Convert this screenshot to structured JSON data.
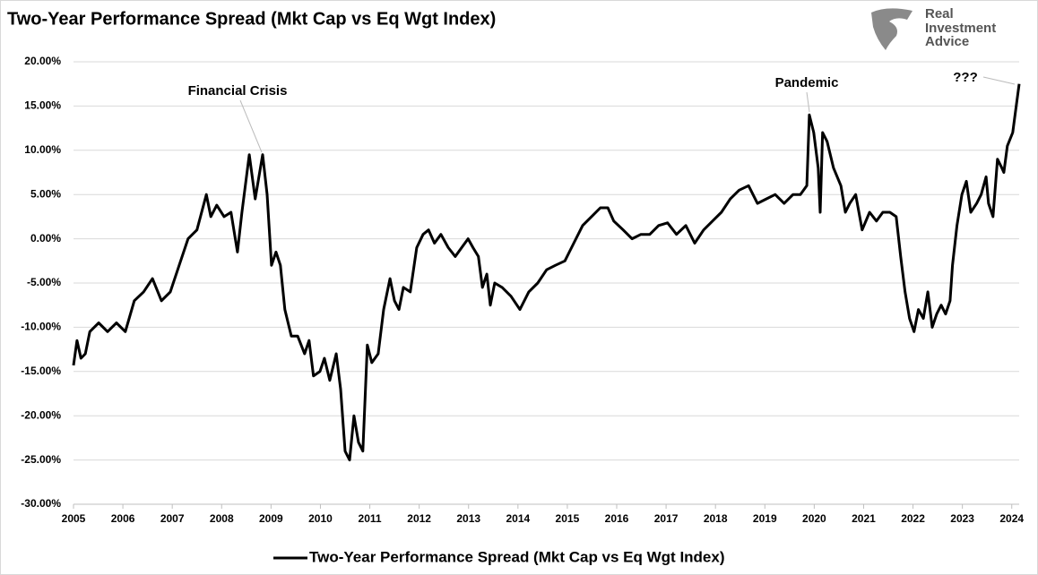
{
  "chart_data": {
    "type": "line",
    "title": "Two-Year Performance Spread (Mkt Cap vs Eq Wgt Index)",
    "x": [
      2005.0,
      2005.07,
      2005.15,
      2005.24,
      2005.33,
      2005.51,
      2005.69,
      2005.87,
      2006.05,
      2006.23,
      2006.42,
      2006.6,
      2006.78,
      2006.96,
      2007.14,
      2007.32,
      2007.5,
      2007.69,
      2007.78,
      2007.9,
      2008.05,
      2008.19,
      2008.32,
      2008.41,
      2008.56,
      2008.68,
      2008.83,
      2008.92,
      2009.01,
      2009.1,
      2009.19,
      2009.28,
      2009.41,
      2009.54,
      2009.68,
      2009.77,
      2009.86,
      2009.99,
      2010.08,
      2010.19,
      2010.32,
      2010.41,
      2010.5,
      2010.59,
      2010.68,
      2010.77,
      2010.86,
      2010.95,
      2011.04,
      2011.17,
      2011.28,
      2011.41,
      2011.5,
      2011.59,
      2011.68,
      2011.82,
      2011.95,
      2012.08,
      2012.19,
      2012.31,
      2012.44,
      2012.59,
      2012.73,
      2012.86,
      2012.99,
      2013.09,
      2013.2,
      2013.28,
      2013.37,
      2013.44,
      2013.53,
      2013.68,
      2013.86,
      2014.04,
      2014.22,
      2014.4,
      2014.58,
      2014.76,
      2014.95,
      2015.13,
      2015.31,
      2015.49,
      2015.67,
      2015.82,
      2015.94,
      2016.13,
      2016.31,
      2016.49,
      2016.67,
      2016.85,
      2017.03,
      2017.21,
      2017.4,
      2017.58,
      2017.76,
      2017.94,
      2018.12,
      2018.3,
      2018.48,
      2018.67,
      2018.85,
      2019.03,
      2019.21,
      2019.39,
      2019.57,
      2019.72,
      2019.85,
      2019.9,
      2019.99,
      2020.08,
      2020.12,
      2020.17,
      2020.26,
      2020.39,
      2020.54,
      2020.63,
      2020.72,
      2020.84,
      2020.97,
      2021.12,
      2021.26,
      2021.39,
      2021.53,
      2021.66,
      2021.75,
      2021.84,
      2021.93,
      2022.02,
      2022.11,
      2022.21,
      2022.3,
      2022.39,
      2022.48,
      2022.57,
      2022.66,
      2022.75,
      2022.8,
      2022.89,
      2022.99,
      2023.08,
      2023.17,
      2023.29,
      2023.38,
      2023.48,
      2023.53,
      2023.62,
      2023.71,
      2023.8,
      2023.84,
      2023.91,
      2024.02,
      2024.09,
      2024.15
    ],
    "series": [
      {
        "name": "Two-Year Performance Spread (Mkt Cap vs Eq Wgt Index)",
        "color": "#000000",
        "values": [
          -14.3,
          -11.5,
          -13.5,
          -13,
          -10.5,
          -9.5,
          -10.5,
          -9.5,
          -10.5,
          -7,
          -6,
          -4.5,
          -7,
          -6,
          -3,
          0,
          1,
          5,
          2.5,
          3.8,
          2.5,
          3,
          -1.5,
          3,
          9.5,
          4.5,
          9.5,
          5,
          -3,
          -1.5,
          -3,
          -8,
          -11,
          -11,
          -13,
          -11.5,
          -15.5,
          -15,
          -13.5,
          -16,
          -13,
          -17,
          -24,
          -25,
          -20,
          -23,
          -24,
          -12,
          -14,
          -13,
          -8,
          -4.5,
          -7,
          -8,
          -5.5,
          -6,
          -1,
          0.5,
          1,
          -0.5,
          0.5,
          -1,
          -2,
          -1,
          0,
          -1,
          -2,
          -5.5,
          -4,
          -7.5,
          -5,
          -5.5,
          -6.5,
          -8,
          -6,
          -5,
          -3.5,
          -3,
          -2.5,
          -0.5,
          1.5,
          2.5,
          3.5,
          3.5,
          2,
          1,
          0,
          0.5,
          0.5,
          1.5,
          1.8,
          0.5,
          1.5,
          -0.5,
          1,
          2,
          3,
          4.5,
          5.5,
          6,
          4,
          4.5,
          5,
          4,
          5,
          5,
          6,
          14,
          12,
          8,
          3,
          12,
          11,
          8,
          6,
          3,
          4,
          5,
          1,
          3,
          2,
          3,
          3,
          2.5,
          -2,
          -6,
          -9,
          -10.5,
          -8,
          -9,
          -6,
          -10,
          -8.5,
          -7.5,
          -8.5,
          -7,
          -3,
          1.5,
          5,
          6.5,
          3,
          4,
          5,
          7,
          4,
          2.5,
          9,
          8,
          7.5,
          10.5,
          12,
          15,
          17.5
        ]
      }
    ],
    "xlim": [
      2005,
      2024.15
    ],
    "xticks": [
      2005,
      2006,
      2007,
      2008,
      2009,
      2010,
      2011,
      2012,
      2013,
      2014,
      2015,
      2016,
      2017,
      2018,
      2019,
      2020,
      2021,
      2022,
      2023,
      2024
    ],
    "ylim": [
      -30,
      20
    ],
    "yticks": [
      {
        "value": -30,
        "label": "-30.00%"
      },
      {
        "value": -25,
        "label": "-25.00%"
      },
      {
        "value": -20,
        "label": "-20.00%"
      },
      {
        "value": -15,
        "label": "-15.00%"
      },
      {
        "value": -10,
        "label": "-10.00%"
      },
      {
        "value": -5,
        "label": "-5.00%"
      },
      {
        "value": 0,
        "label": "0.00%"
      },
      {
        "value": 5,
        "label": "5.00%"
      },
      {
        "value": 10,
        "label": "10.00%"
      },
      {
        "value": 15,
        "label": "15.00%"
      },
      {
        "value": 20,
        "label": "20.00%"
      }
    ],
    "grid": true,
    "legend": "bottom",
    "annotations": [
      {
        "text": "Financial Crisis"
      },
      {
        "text": "Pandemic"
      },
      {
        "text": "???"
      }
    ]
  },
  "logo": {
    "lines": [
      "Real",
      "Investment",
      "Advice"
    ]
  }
}
